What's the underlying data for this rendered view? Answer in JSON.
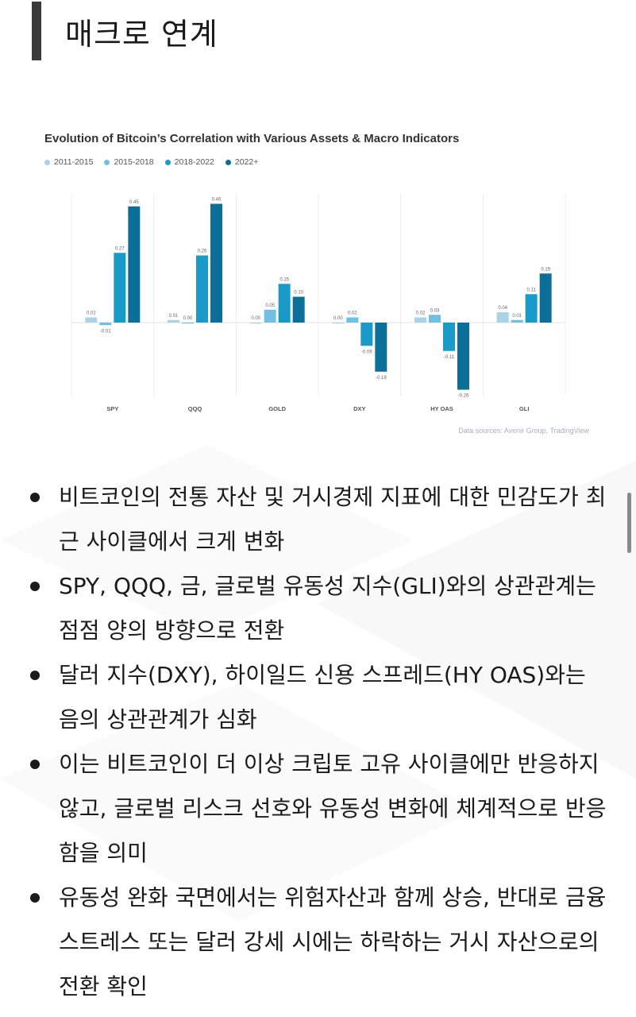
{
  "header": {
    "title": "매크로 연계"
  },
  "chart_data": {
    "type": "bar",
    "title": "Evolution of Bitcoin’s Correlation with Various Assets & Macro Indicators",
    "categories": [
      "SPY",
      "QQQ",
      "GOLD",
      "DXY",
      "HY OAS",
      "GLI"
    ],
    "series": [
      {
        "name": "2011-2015",
        "color": "#a9d4e8",
        "values": [
          0.02,
          0.01,
          0.0,
          0.0,
          0.02,
          0.04
        ]
      },
      {
        "name": "2015-2018",
        "color": "#6fc0e3",
        "values": [
          -0.01,
          0.0,
          0.05,
          0.02,
          0.03,
          0.01
        ]
      },
      {
        "name": "2018-2022",
        "color": "#1a9ac8",
        "values": [
          0.27,
          0.26,
          0.15,
          -0.09,
          -0.11,
          0.11
        ]
      },
      {
        "name": "2022+",
        "color": "#0b6f99",
        "values": [
          0.45,
          0.46,
          0.1,
          -0.19,
          -0.26,
          0.19
        ]
      }
    ],
    "value_labels": [
      [
        "0.02",
        "-0.01",
        "0.27",
        "0.45"
      ],
      [
        "0.01",
        "0.00",
        "0.26",
        "0.46"
      ],
      [
        "0.00",
        "0.05",
        "0.15",
        "0.10"
      ],
      [
        "0.00",
        "0.02",
        "-0.09",
        "-0.19"
      ],
      [
        "0.02",
        "0.03",
        "-0.11",
        "-0.26"
      ],
      [
        "0.04",
        "0.01",
        "0.11",
        "0.19"
      ]
    ],
    "ylim": [
      -0.3,
      0.5
    ],
    "grid": false,
    "legend": "top-left",
    "source": "Data sources: Avenir Group, TradingView"
  },
  "bullets": [
    "비트코인의 전통 자산 및 거시경제 지표에 대한 민감도가 최근 사이클에서 크게 변화",
    "SPY, QQQ, 금, 글로벌 유동성 지수(GLI)와의 상관관계는 점점 양의 방향으로 전환",
    "달러 지수(DXY), 하이일드 신용 스프레드(HY OAS)와는 음의 상관관계가 심화",
    "이는 비트코인이 더 이상 크립토 고유 사이클에만 반응하지 않고, 글로벌 리스크 선호와 유동성 변화에 체계적으로 반응함을 의미",
    "유동성 완화 국면에서는 위험자산과 함께 상승, 반대로 금융 스트레스 또는 달러 강세 시에는 하락하는 거시 자산으로의 전환 확인"
  ]
}
